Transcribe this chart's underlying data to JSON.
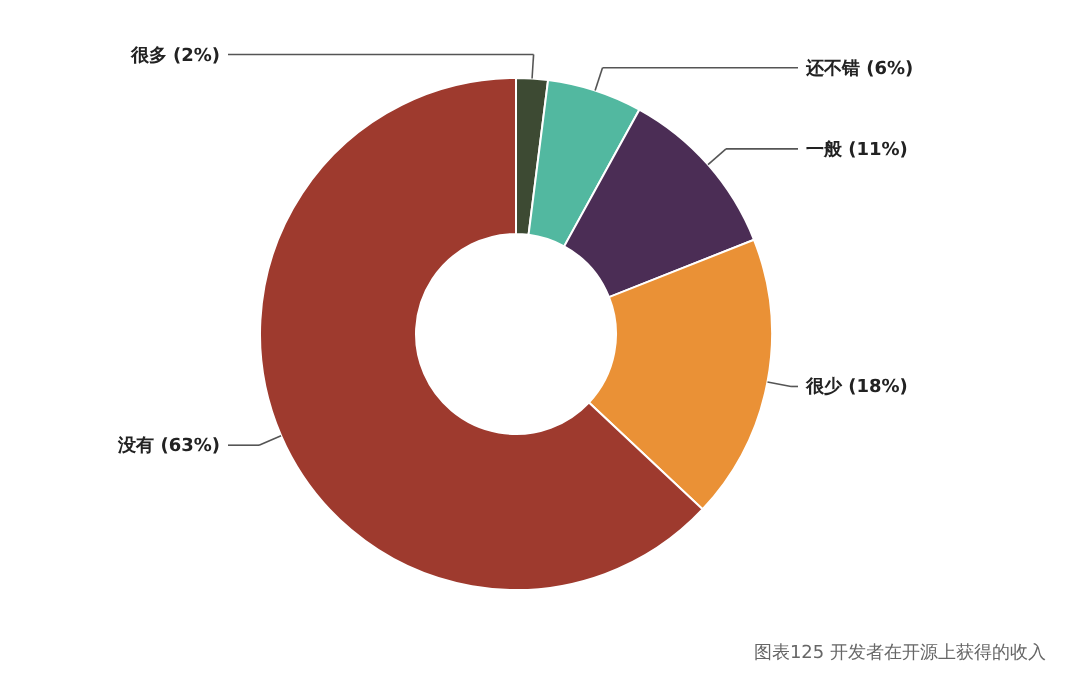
{
  "chart_data": {
    "type": "donut",
    "categories": [
      "很多",
      "还不错",
      "一般",
      "很少",
      "没有"
    ],
    "values": [
      2,
      6,
      11,
      18,
      63
    ],
    "colors": [
      "#3d4a33",
      "#52b8a0",
      "#4b2d55",
      "#ea9136",
      "#9e3a2e"
    ],
    "value_labels": [
      "(2%)",
      "(6%)",
      "(11%)",
      "(18%)",
      "(63%)"
    ],
    "annotations": [
      "图表125 开发者在开源上获得的收入"
    ]
  }
}
